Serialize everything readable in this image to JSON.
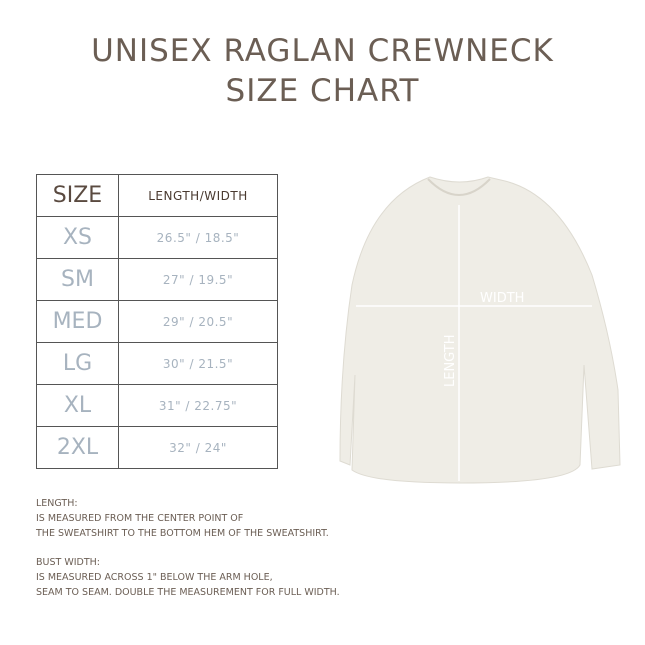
{
  "title": {
    "line1": "UNISEX RAGLAN CREWNECK",
    "line2": "SIZE CHART"
  },
  "table": {
    "headers": [
      "SIZE",
      "LENGTH/WIDTH"
    ],
    "rows": [
      {
        "size": "XS",
        "value": "26.5\" / 18.5\""
      },
      {
        "size": "SM",
        "value": "27\" / 19.5\""
      },
      {
        "size": "MED",
        "value": "29\" / 20.5\""
      },
      {
        "size": "LG",
        "value": "30\" / 21.5\""
      },
      {
        "size": "XL",
        "value": "31\" / 22.75\""
      },
      {
        "size": "2XL",
        "value": "32\" / 24\""
      }
    ]
  },
  "diagram": {
    "width_label": "WIDTH",
    "length_label": "LENGTH",
    "garment_color": "#efede6"
  },
  "notes": {
    "length": [
      "LENGTH:",
      "IS MEASURED FROM THE CENTER POINT OF",
      "THE SWEATSHIRT TO THE BOTTOM HEM OF THE SWEATSHIRT."
    ],
    "width": [
      "BUST WIDTH:",
      "IS MEASURED ACROSS 1\" BELOW THE ARM HOLE,",
      "SEAM TO SEAM. DOUBLE THE MEASUREMENT FOR FULL WIDTH."
    ]
  }
}
